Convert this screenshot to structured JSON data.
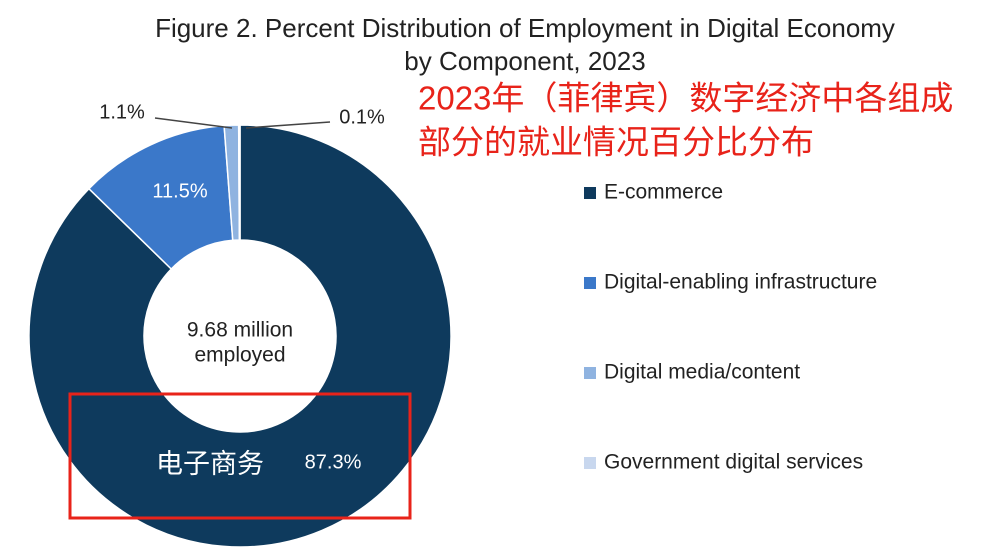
{
  "chart_data": {
    "type": "donut",
    "title": [
      "Figure 2. Percent Distribution of Employment in Digital Economy",
      "by Component, 2023"
    ],
    "categories": [
      "E-commerce",
      "Digital-enabling infrastructure",
      "Digital media/content",
      "Government digital services"
    ],
    "values": [
      87.3,
      11.5,
      1.1,
      0.1
    ],
    "value_labels": [
      "87.3%",
      "11.5%",
      "1.1%",
      "0.1%"
    ],
    "colors": [
      "#0e3a5d",
      "#3b78c9",
      "#8fb3e0",
      "#c8d7ee"
    ],
    "center_label": [
      "9.68 million",
      "employed"
    ],
    "annotations": [
      {
        "lines": [
          "2023年（菲律宾）数字经济中各组成",
          "部分的就业情况百分比分布"
        ],
        "color": "#e8231a"
      },
      {
        "text": "电子商务",
        "color": "#ffffff",
        "box_color": "#e8231a"
      }
    ],
    "legend": "right"
  }
}
